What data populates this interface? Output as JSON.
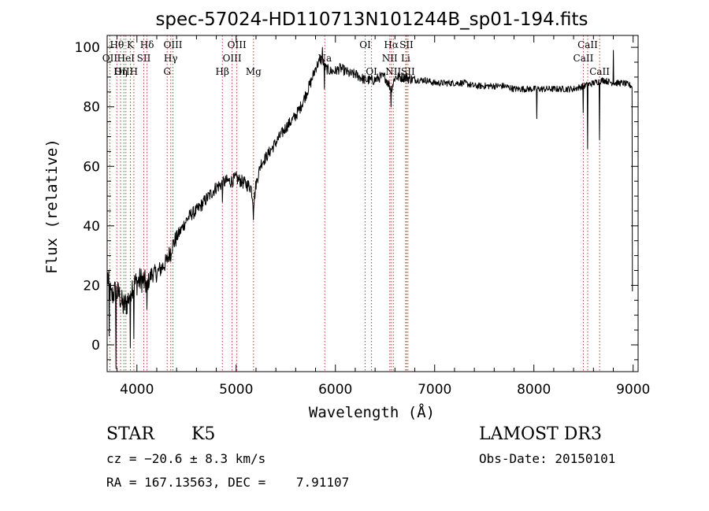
{
  "chart_data": {
    "type": "line",
    "title": "spec-57024-HD110713N101244B_sp01-194.fits",
    "xlabel": "Wavelength (Å)",
    "ylabel": "Flux (relative)",
    "xlim": [
      3700,
      9050
    ],
    "ylim": [
      -9,
      104
    ],
    "x_ticks": [
      4000,
      5000,
      6000,
      7000,
      8000,
      9000
    ],
    "y_ticks": [
      0,
      20,
      40,
      60,
      80,
      100
    ],
    "grid": false,
    "line_color": "#000000",
    "marker_color": "#cc3333",
    "spectrum_anchors": [
      [
        3700,
        24
      ],
      [
        3740,
        16
      ],
      [
        3780,
        18
      ],
      [
        3820,
        17
      ],
      [
        3860,
        13
      ],
      [
        3900,
        14
      ],
      [
        3950,
        20
      ],
      [
        4000,
        21
      ],
      [
        4050,
        22
      ],
      [
        4100,
        20
      ],
      [
        4150,
        24
      ],
      [
        4200,
        24
      ],
      [
        4250,
        26
      ],
      [
        4300,
        28
      ],
      [
        4350,
        33
      ],
      [
        4400,
        36
      ],
      [
        4450,
        39
      ],
      [
        4500,
        42
      ],
      [
        4550,
        44
      ],
      [
        4600,
        45
      ],
      [
        4650,
        47
      ],
      [
        4700,
        49
      ],
      [
        4750,
        51
      ],
      [
        4800,
        53
      ],
      [
        4850,
        54
      ],
      [
        4900,
        55
      ],
      [
        4950,
        55
      ],
      [
        5000,
        56
      ],
      [
        5050,
        55
      ],
      [
        5100,
        54
      ],
      [
        5150,
        53
      ],
      [
        5175,
        47
      ],
      [
        5200,
        54
      ],
      [
        5250,
        61
      ],
      [
        5300,
        63
      ],
      [
        5400,
        68
      ],
      [
        5500,
        73
      ],
      [
        5600,
        77
      ],
      [
        5650,
        80
      ],
      [
        5700,
        84
      ],
      [
        5750,
        88
      ],
      [
        5800,
        93
      ],
      [
        5850,
        96
      ],
      [
        5900,
        93
      ],
      [
        5950,
        92
      ],
      [
        6000,
        92
      ],
      [
        6050,
        93
      ],
      [
        6100,
        92
      ],
      [
        6150,
        91
      ],
      [
        6200,
        91
      ],
      [
        6250,
        90
      ],
      [
        6300,
        89
      ],
      [
        6350,
        89
      ],
      [
        6400,
        89
      ],
      [
        6450,
        90
      ],
      [
        6500,
        90
      ],
      [
        6563,
        86
      ],
      [
        6600,
        90
      ],
      [
        6700,
        90
      ],
      [
        6800,
        89
      ],
      [
        6900,
        89
      ],
      [
        7000,
        88
      ],
      [
        7100,
        88
      ],
      [
        7200,
        88
      ],
      [
        7300,
        88
      ],
      [
        7400,
        87
      ],
      [
        7500,
        87
      ],
      [
        7600,
        87
      ],
      [
        7700,
        87
      ],
      [
        7800,
        86
      ],
      [
        7900,
        86
      ],
      [
        8000,
        86
      ],
      [
        8100,
        86
      ],
      [
        8200,
        86
      ],
      [
        8300,
        86
      ],
      [
        8400,
        86
      ],
      [
        8500,
        87
      ],
      [
        8600,
        88
      ],
      [
        8700,
        89
      ],
      [
        8800,
        88
      ],
      [
        8900,
        88
      ],
      [
        8990,
        87
      ]
    ],
    "spectrum_dips": [
      [
        3720,
        3
      ],
      [
        3790,
        -8
      ],
      [
        3933,
        -1
      ],
      [
        3968,
        2
      ],
      [
        4101,
        12
      ],
      [
        4340,
        28
      ],
      [
        4861,
        48
      ],
      [
        5175,
        42
      ],
      [
        5890,
        86
      ],
      [
        6563,
        80
      ],
      [
        8030,
        76
      ],
      [
        8498,
        78
      ],
      [
        8542,
        66
      ],
      [
        8662,
        69
      ],
      [
        8995,
        18
      ]
    ],
    "spectrum_spikes": [
      [
        5870,
        100
      ],
      [
        8800,
        99
      ]
    ],
    "lines": [
      {
        "label": "Hθ",
        "wavelength": 3798,
        "row": 1
      },
      {
        "label": "OII",
        "wavelength": 3727,
        "row": 2
      },
      {
        "label": "OIII",
        "wavelength": 3869,
        "row": 3
      },
      {
        "label": "K",
        "wavelength": 3934,
        "row": 1
      },
      {
        "label": "HeI",
        "wavelength": 3889,
        "row": 2
      },
      {
        "label": "Hη",
        "wavelength": 3835,
        "row": 3
      },
      {
        "label": "H",
        "wavelength": 3969,
        "row": 3
      },
      {
        "label": "SII",
        "wavelength": 4069,
        "row": 2
      },
      {
        "label": "Hδ",
        "wavelength": 4102,
        "row": 1
      },
      {
        "label": "OIII",
        "wavelength": 4363,
        "row": 1
      },
      {
        "label": "Hγ",
        "wavelength": 4341,
        "row": 2
      },
      {
        "label": "G",
        "wavelength": 4305,
        "row": 3
      },
      {
        "label": "Hβ",
        "wavelength": 4861,
        "row": 3
      },
      {
        "label": "OIII",
        "wavelength": 5007,
        "row": 1
      },
      {
        "label": "OIII",
        "wavelength": 4959,
        "row": 2
      },
      {
        "label": "Mg",
        "wavelength": 5175,
        "row": 3
      },
      {
        "label": "Na",
        "wavelength": 5893,
        "row": 2
      },
      {
        "label": "OI",
        "wavelength": 6300,
        "row": 1
      },
      {
        "label": "OI",
        "wavelength": 6364,
        "row": 3
      },
      {
        "label": "Hα",
        "wavelength": 6563,
        "row": 1
      },
      {
        "label": "SII",
        "wavelength": 6716,
        "row": 1
      },
      {
        "label": "NII",
        "wavelength": 6548,
        "row": 2
      },
      {
        "label": "Li",
        "wavelength": 6708,
        "row": 2
      },
      {
        "label": "NII",
        "wavelength": 6583,
        "row": 3
      },
      {
        "label": "SII",
        "wavelength": 6731,
        "row": 3
      },
      {
        "label": "CaII",
        "wavelength": 8542,
        "row": 1
      },
      {
        "label": "CaII",
        "wavelength": 8498,
        "row": 2
      },
      {
        "label": "CaII",
        "wavelength": 8662,
        "row": 3
      }
    ]
  },
  "info": {
    "class_label": "STAR",
    "subclass": "K5",
    "survey": "LAMOST DR3",
    "cz": "cz = −20.6 ± 8.3 km/s",
    "obs_date": "Obs-Date: 20150101",
    "coords": "RA = 167.13563, DEC =    7.91107"
  }
}
